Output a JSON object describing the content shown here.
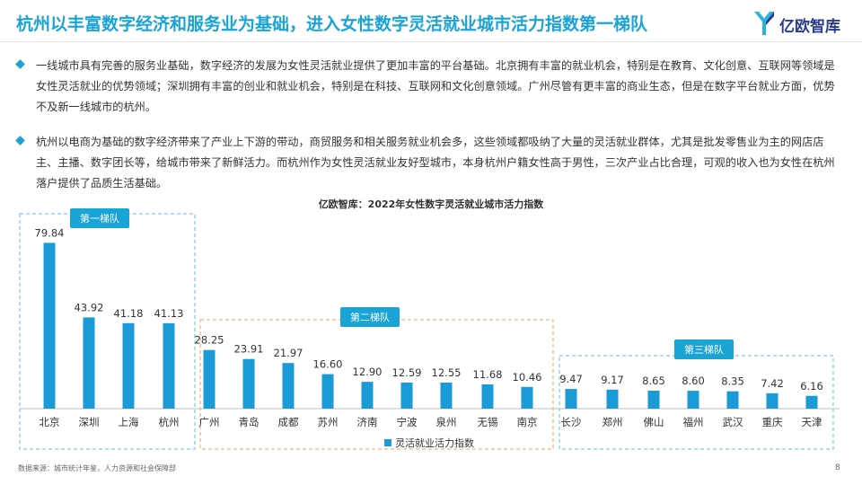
{
  "header": {
    "title": "杭州以丰富数字经济和服务业为基础，进入女性数字灵活就业城市活力指数第一梯队",
    "logo_text": "亿欧智库"
  },
  "paragraphs": [
    "一线城市具有完善的服务业基础，数字经济的发展为女性灵活就业提供了更加丰富的平台基础。北京拥有丰富的就业机会，特别是在教育、文化创意、互联网等领域是女性灵活就业的优势领域；深圳拥有丰富的创业和就业机会，特别是在科技、互联网和文化创意领域。广州尽管有更丰富的商业生态，但是在数字平台就业方面，优势不及新一线城市的杭州。",
    "杭州以电商为基础的数字经济带来了产业上下游的带动，商贸服务和相关服务就业机会多，这些领域都吸纳了大量的灵活就业群体，尤其是批发零售业为主的网店店主、主播、数字团长等，给城市带来了新鲜活力。而杭州作为女性灵活就业友好型城市，本身杭州户籍女性高于男性，三次产业占比合理，可观的收入也为女性在杭州落户提供了品质生活基础。"
  ],
  "chart_data": {
    "type": "bar",
    "title": "亿欧智库：2022年女性数字灵活就业城市活力指数",
    "categories": [
      "北京",
      "深圳",
      "上海",
      "杭州",
      "广州",
      "青岛",
      "成都",
      "苏州",
      "济南",
      "宁波",
      "泉州",
      "无锡",
      "南京",
      "长沙",
      "郑州",
      "佛山",
      "福州",
      "武汉",
      "重庆",
      "天津"
    ],
    "series": [
      {
        "name": "灵活就业活力指数",
        "values": [
          79.84,
          43.92,
          41.18,
          41.13,
          28.25,
          23.91,
          21.97,
          16.6,
          12.9,
          12.59,
          12.55,
          11.68,
          10.46,
          9.47,
          9.17,
          8.65,
          8.6,
          8.35,
          7.42,
          6.16
        ],
        "labels": [
          "79.84",
          "43.92",
          "41.18",
          "41.13",
          "28.25",
          "23.91",
          "21.97",
          "16.60",
          "12.90",
          "12.59",
          "12.55",
          "11.68",
          "10.46",
          "9.47",
          "9.17",
          "8.65",
          "8.60",
          "8.35",
          "7.42",
          "6.16"
        ]
      }
    ],
    "groups": [
      {
        "label": "第一梯队",
        "from": 0,
        "to": 3,
        "color": "#5BBFD9"
      },
      {
        "label": "第二梯队",
        "from": 4,
        "to": 12,
        "color": "#F0A15A"
      },
      {
        "label": "第三梯队",
        "from": 13,
        "to": 19,
        "color": "#5BBFD9"
      }
    ],
    "legend": "bottom",
    "grid": false,
    "bar_color": "#1A9BD7",
    "ylim": [
      0,
      80
    ]
  },
  "footer": {
    "source": "数据来源：城市统计年鉴，人力资源和社会保障部",
    "page": "8"
  }
}
